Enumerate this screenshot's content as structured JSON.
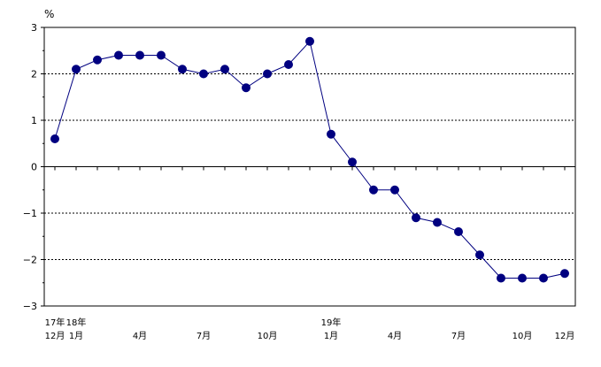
{
  "chart_data": {
    "type": "line",
    "unit_label": "%",
    "ylim": [
      -3,
      3
    ],
    "yticks": [
      3,
      2,
      1,
      0,
      -1,
      -2,
      -3
    ],
    "ytick_labels": [
      "3",
      "2",
      "1",
      "0",
      "−1",
      "−2",
      "−3"
    ],
    "gridlines_dashed_at": [
      2,
      1,
      -1,
      -2
    ],
    "x_labels": [
      {
        "index": 0,
        "year": "17年",
        "month": "12月"
      },
      {
        "index": 1,
        "year": "18年",
        "month": "1月"
      },
      {
        "index": 4,
        "year": "",
        "month": "4月"
      },
      {
        "index": 7,
        "year": "",
        "month": "7月"
      },
      {
        "index": 10,
        "year": "",
        "month": "10月"
      },
      {
        "index": 13,
        "year": "19年",
        "month": "1月"
      },
      {
        "index": 16,
        "year": "",
        "month": "4月"
      },
      {
        "index": 19,
        "year": "",
        "month": "7月"
      },
      {
        "index": 22,
        "year": "",
        "month": "10月"
      },
      {
        "index": 24,
        "year": "",
        "month": "12月"
      }
    ],
    "values": [
      0.6,
      2.1,
      2.3,
      2.4,
      2.4,
      2.4,
      2.1,
      2.0,
      2.1,
      1.7,
      2.0,
      2.2,
      2.7,
      0.7,
      0.1,
      -0.5,
      -0.5,
      -1.1,
      -1.2,
      -1.4,
      -1.9,
      -2.4,
      -2.4,
      -2.4,
      -2.3
    ],
    "colors": {
      "series": "#000080",
      "axis": "#000000",
      "grid": "#000000"
    }
  }
}
